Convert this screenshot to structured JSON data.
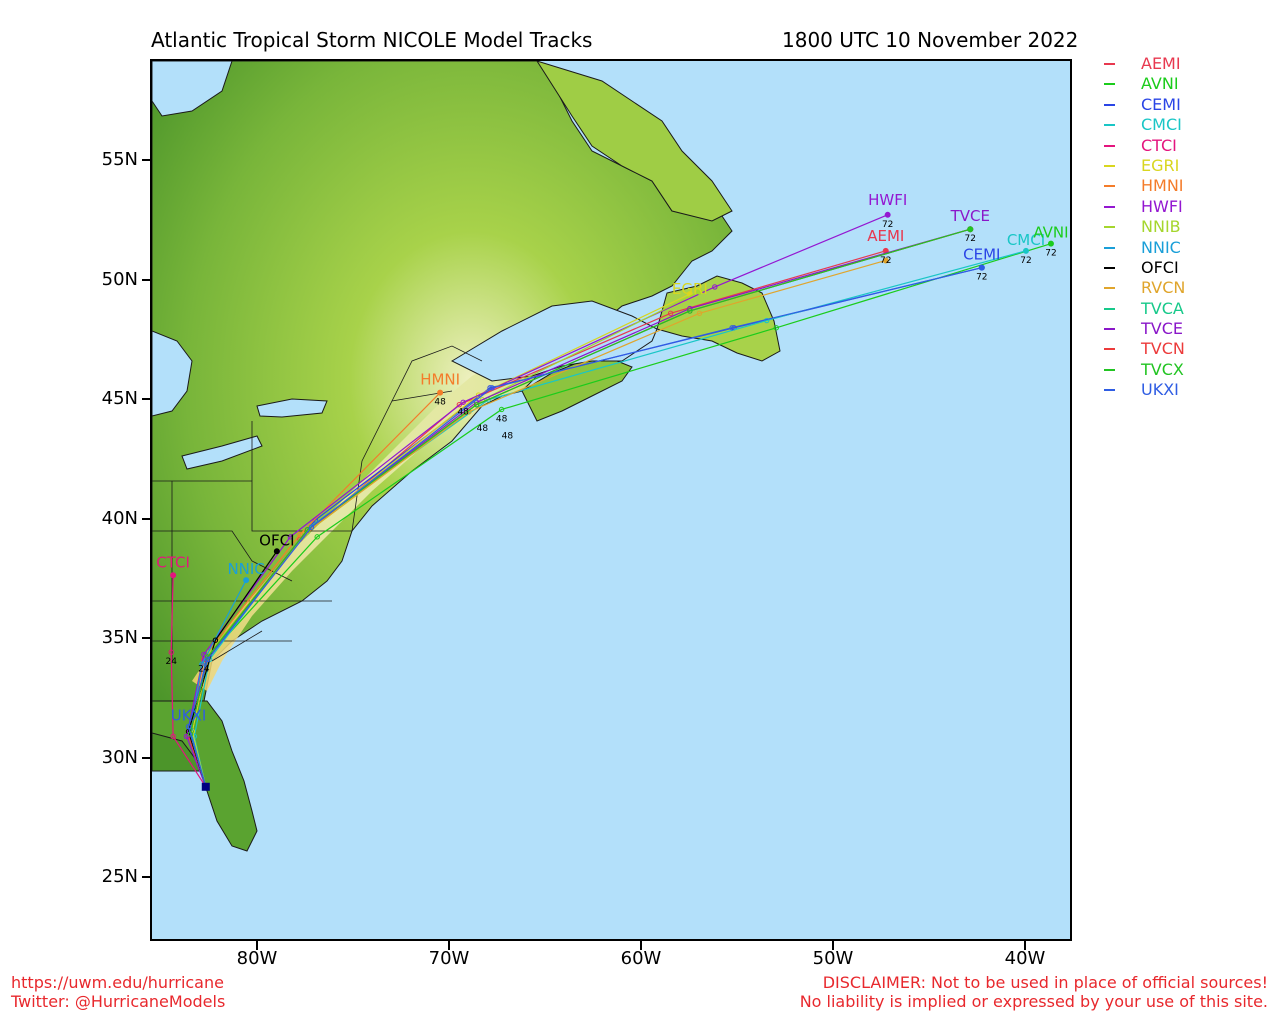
{
  "title_left": "Atlantic Tropical Storm NICOLE Model Tracks",
  "title_right": "1800 UTC 10 November 2022",
  "colors": {
    "ocean": "#b3e0fa",
    "land_low": "#4f9a2c",
    "land_mid": "#9ccc3c",
    "land_high": "#f5f2c6",
    "frame": "#000000"
  },
  "lat_labels": [
    "55N",
    "50N",
    "45N",
    "40N",
    "35N",
    "30N",
    "25N"
  ],
  "lon_labels": [
    "80W",
    "70W",
    "60W",
    "50W",
    "40W"
  ],
  "legend": [
    {
      "name": "AEMI",
      "color": "#e8384f"
    },
    {
      "name": "AVNI",
      "color": "#1bcc1b"
    },
    {
      "name": "CEMI",
      "color": "#2a45e6"
    },
    {
      "name": "CMCI",
      "color": "#19c6c6"
    },
    {
      "name": "CTCI",
      "color": "#e4157e"
    },
    {
      "name": "EGRI",
      "color": "#d9d61f"
    },
    {
      "name": "HMNI",
      "color": "#f47c2a"
    },
    {
      "name": "HWFI",
      "color": "#9417d1"
    },
    {
      "name": "NNIB",
      "color": "#a5d62d"
    },
    {
      "name": "NNIC",
      "color": "#1a9fd8"
    },
    {
      "name": "OFCI",
      "color": "#000000"
    },
    {
      "name": "RVCN",
      "color": "#e0a52c"
    },
    {
      "name": "TVCA",
      "color": "#17c98a"
    },
    {
      "name": "TVCE",
      "color": "#8a17c9"
    },
    {
      "name": "TVCN",
      "color": "#ec3b3b"
    },
    {
      "name": "TVCX",
      "color": "#22c422"
    },
    {
      "name": "UKXI",
      "color": "#2f5de3"
    }
  ],
  "track_end_labels": [
    "HWFI",
    "TVCE",
    "AEMI",
    "CMCI",
    "AVNI",
    "CEMI",
    "HMNI",
    "OFCI",
    "NNIC",
    "CTCI",
    "UKXI",
    "EGRI"
  ],
  "hour_labels": [
    "72",
    "48",
    "24"
  ],
  "footer_left": [
    "https://uwm.edu/hurricane",
    "Twitter: @HurricaneModels"
  ],
  "footer_right": [
    "DISCLAIMER: Not to be used in place of official sources!",
    "No liability is implied or expressed by your use of this site."
  ],
  "map_data": {
    "start": {
      "lat": 28.9,
      "lon": -82.7
    },
    "tracks": {
      "AEMI": [
        [
          -82.7,
          28.9
        ],
        [
          -83.6,
          31.0
        ],
        [
          -82.8,
          34.2
        ],
        [
          -77.8,
          39.2
        ],
        [
          -69.5,
          44.8
        ],
        [
          -58.5,
          48.6
        ],
        [
          -47.3,
          51.2
        ]
      ],
      "AVNI": [
        [
          -82.7,
          28.9
        ],
        [
          -83.4,
          31.1
        ],
        [
          -82.6,
          34.3
        ],
        [
          -76.9,
          39.3
        ],
        [
          -67.3,
          44.6
        ],
        [
          -53.0,
          48.0
        ],
        [
          -38.7,
          51.5
        ]
      ],
      "CEMI": [
        [
          -82.7,
          28.9
        ],
        [
          -83.5,
          31.2
        ],
        [
          -82.7,
          34.1
        ],
        [
          -77.0,
          40.0
        ],
        [
          -67.9,
          45.5
        ],
        [
          -55.2,
          48.0
        ],
        [
          -42.3,
          50.5
        ]
      ],
      "CMCI": [
        [
          -82.7,
          28.9
        ],
        [
          -83.3,
          31.0
        ],
        [
          -82.5,
          34.2
        ],
        [
          -77.3,
          39.7
        ],
        [
          -68.0,
          45.0
        ],
        [
          -53.5,
          48.3
        ],
        [
          -40.0,
          51.2
        ]
      ],
      "CTCI": [
        [
          -82.7,
          28.9
        ],
        [
          -84.4,
          31.0
        ],
        [
          -84.5,
          34.5
        ],
        [
          -84.4,
          37.7
        ]
      ],
      "EGRI": [
        [
          -82.7,
          28.9
        ],
        [
          -83.4,
          31.2
        ],
        [
          -82.5,
          34.5
        ],
        [
          -77.5,
          39.5
        ],
        [
          -68.5,
          45.2
        ],
        [
          -57.5,
          49.4
        ]
      ],
      "HMNI": [
        [
          -82.7,
          28.9
        ],
        [
          -83.6,
          31.2
        ],
        [
          -82.4,
          34.7
        ],
        [
          -77.8,
          39.4
        ],
        [
          -70.5,
          45.3
        ]
      ],
      "HWFI": [
        [
          -82.7,
          28.9
        ],
        [
          -83.7,
          31.0
        ],
        [
          -82.8,
          34.4
        ],
        [
          -78.3,
          39.3
        ],
        [
          -69.3,
          44.9
        ],
        [
          -56.2,
          49.7
        ],
        [
          -47.2,
          52.7
        ]
      ],
      "NNIB": [
        [
          -82.7,
          28.9
        ],
        [
          -83.5,
          31.3
        ],
        [
          -82.5,
          34.5
        ],
        [
          -77.4,
          39.5
        ],
        [
          -68.3,
          45.0
        ],
        [
          -57.0,
          49.5
        ]
      ],
      "NNIC": [
        [
          -82.7,
          28.9
        ],
        [
          -83.5,
          31.3
        ],
        [
          -82.9,
          34.0
        ],
        [
          -80.6,
          37.5
        ]
      ],
      "OFCI": [
        [
          -82.7,
          28.9
        ],
        [
          -83.6,
          31.2
        ],
        [
          -82.2,
          35.0
        ],
        [
          -79.0,
          38.7
        ]
      ],
      "RVCN": [
        [
          -82.7,
          28.9
        ],
        [
          -83.5,
          31.1
        ],
        [
          -82.6,
          34.3
        ],
        [
          -77.6,
          39.4
        ],
        [
          -69.0,
          44.5
        ],
        [
          -57.0,
          48.6
        ],
        [
          -47.3,
          50.8
        ]
      ],
      "TVCA": [
        [
          -82.7,
          28.9
        ],
        [
          -83.5,
          31.1
        ],
        [
          -82.6,
          34.3
        ],
        [
          -77.4,
          39.6
        ],
        [
          -68.6,
          44.8
        ],
        [
          -57.5,
          48.7
        ],
        [
          -42.9,
          52.1
        ]
      ],
      "TVCE": [
        [
          -82.7,
          28.9
        ],
        [
          -83.5,
          31.1
        ],
        [
          -82.6,
          34.3
        ],
        [
          -77.4,
          39.6
        ],
        [
          -68.6,
          44.9
        ],
        [
          -57.5,
          48.8
        ],
        [
          -42.9,
          52.1
        ]
      ],
      "TVCN": [
        [
          -82.7,
          28.9
        ],
        [
          -83.5,
          31.1
        ],
        [
          -82.6,
          34.3
        ],
        [
          -77.4,
          39.6
        ],
        [
          -68.6,
          44.8
        ],
        [
          -57.5,
          48.7
        ],
        [
          -42.9,
          52.1
        ]
      ],
      "TVCX": [
        [
          -82.7,
          28.9
        ],
        [
          -83.5,
          31.1
        ],
        [
          -82.6,
          34.3
        ],
        [
          -77.4,
          39.6
        ],
        [
          -68.6,
          44.8
        ],
        [
          -57.5,
          48.7
        ],
        [
          -42.9,
          52.1
        ]
      ],
      "UKXI": [
        [
          -82.7,
          28.9
        ],
        [
          -83.6,
          31.4
        ],
        [
          -82.6,
          34.2
        ],
        [
          -77.2,
          39.7
        ],
        [
          -67.8,
          45.5
        ],
        [
          -55.3,
          48.0
        ],
        [
          -42.3,
          50.5
        ]
      ]
    }
  }
}
